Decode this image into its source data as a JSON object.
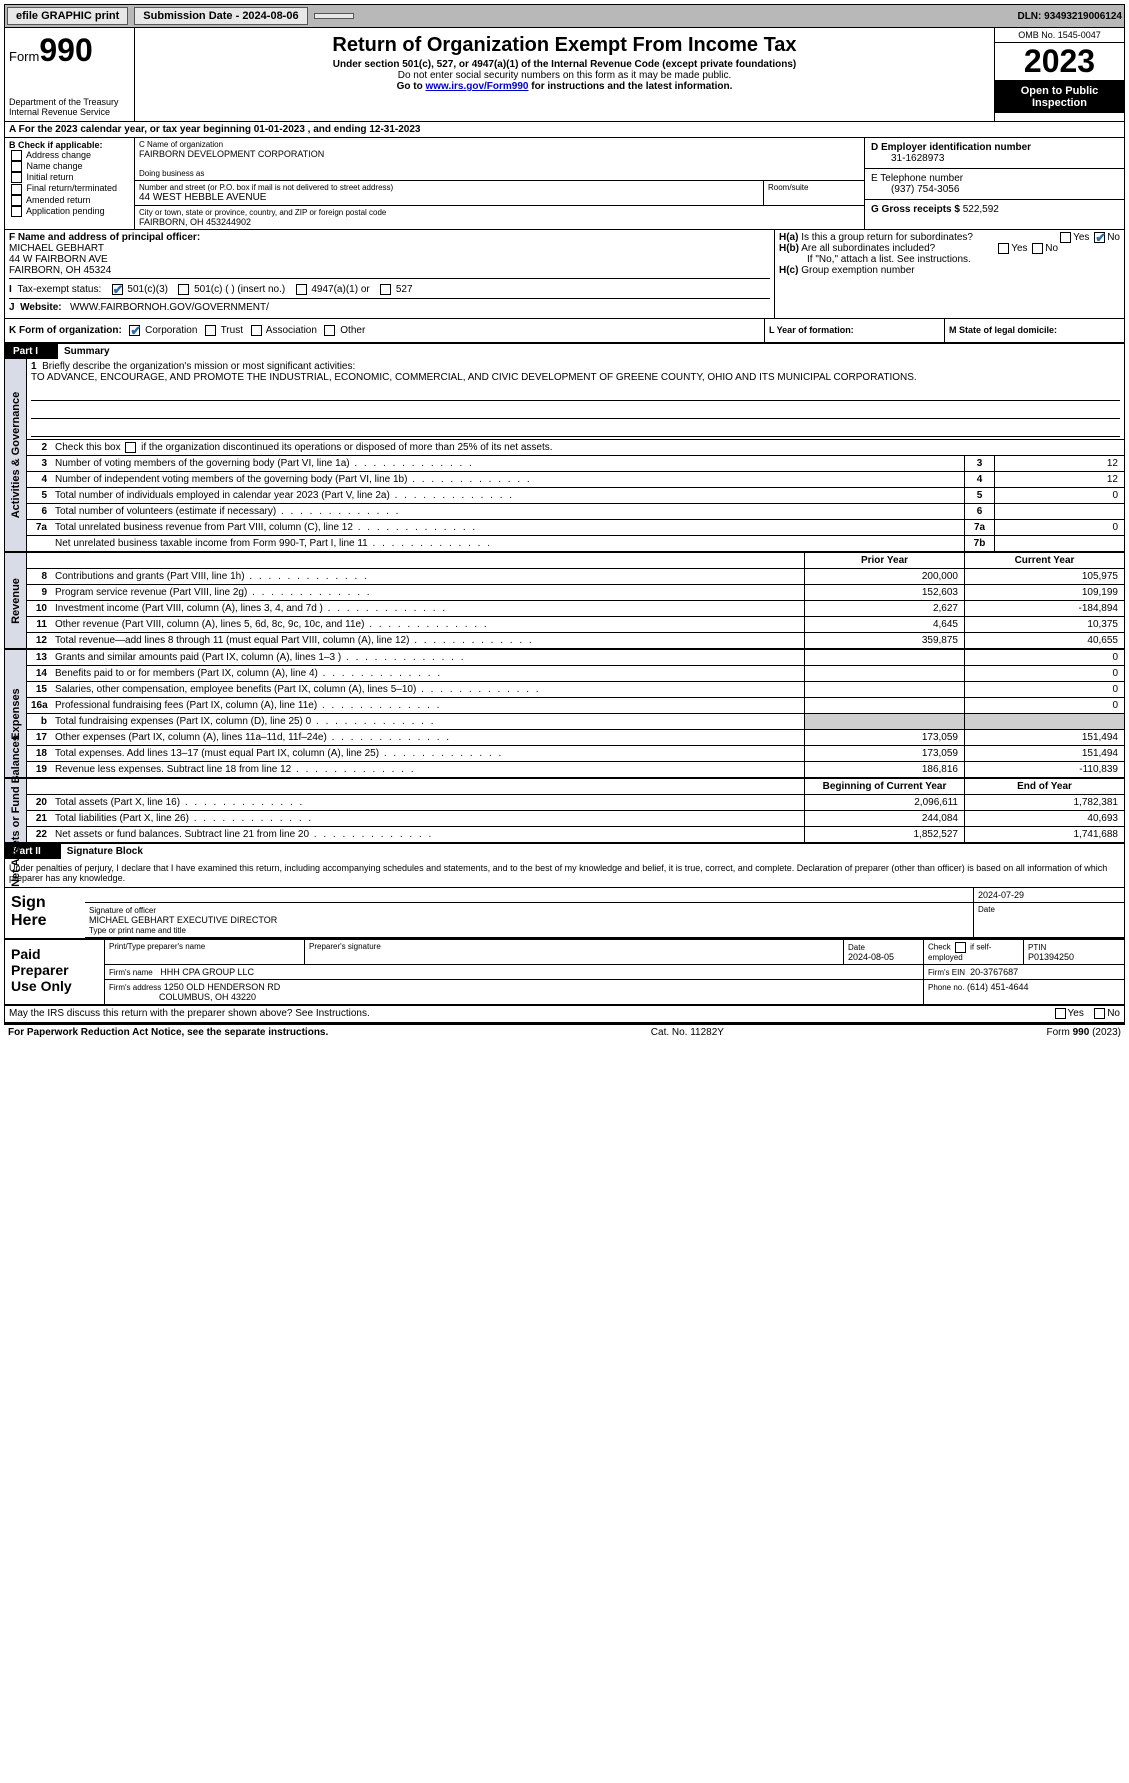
{
  "topbar": {
    "efile": "efile GRAPHIC print",
    "sub_date_label": "Submission Date - 2024-08-06",
    "dln": "DLN: 93493219006124"
  },
  "header": {
    "form_label": "Form",
    "form_num": "990",
    "dept1": "Department of the Treasury",
    "dept2": "Internal Revenue Service",
    "title": "Return of Organization Exempt From Income Tax",
    "sub1": "Under section 501(c), 527, or 4947(a)(1) of the Internal Revenue Code (except private foundations)",
    "sub2": "Do not enter social security numbers on this form as it may be made public.",
    "sub3_pre": "Go to ",
    "sub3_link": "www.irs.gov/Form990",
    "sub3_post": " for instructions and the latest information.",
    "omb": "OMB No. 1545-0047",
    "year": "2023",
    "open": "Open to Public Inspection"
  },
  "row_a": "A  For the 2023 calendar year, or tax year beginning 01-01-2023   , and ending 12-31-2023",
  "secB": {
    "b_label": "B Check if applicable:",
    "b_items": [
      "Address change",
      "Name change",
      "Initial return",
      "Final return/terminated",
      "Amended return",
      "Application pending"
    ],
    "c_name_label": "C Name of organization",
    "c_name": "FAIRBORN DEVELOPMENT CORPORATION",
    "dba_label": "Doing business as",
    "street_label": "Number and street (or P.O. box if mail is not delivered to street address)",
    "room_label": "Room/suite",
    "street": "44 WEST HEBBLE AVENUE",
    "city_label": "City or town, state or province, country, and ZIP or foreign postal code",
    "city": "FAIRBORN, OH  453244902",
    "d_label": "D Employer identification number",
    "d_val": "31-1628973",
    "e_label": "E Telephone number",
    "e_val": "(937) 754-3056",
    "g_label": "G Gross receipts $ ",
    "g_val": "522,592"
  },
  "secF": {
    "f_label": "F Name and address of principal officer:",
    "f_name": "MICHAEL GEBHART",
    "f_addr1": "44 W FAIRBORN AVE",
    "f_addr2": "FAIRBORN, OH  45324",
    "i_label": "Tax-exempt status:",
    "i_501c3": "501(c)(3)",
    "i_501c": "501(c) (  ) (insert no.)",
    "i_4947": "4947(a)(1) or",
    "i_527": "527",
    "j_label": "Website:",
    "j_val": "WWW.FAIRBORNOH.GOV/GOVERNMENT/",
    "ha_label": "H(a)  Is this a group return for subordinates?",
    "hb_label": "H(b)  Are all subordinates included?",
    "hb_note": "If \"No,\" attach a list. See instructions.",
    "hc_label": "H(c)  Group exemption number",
    "yes": "Yes",
    "no": "No"
  },
  "rowK": {
    "k_label": "K Form of organization:",
    "k_corp": "Corporation",
    "k_trust": "Trust",
    "k_assoc": "Association",
    "k_other": "Other",
    "l_label": "L Year of formation:",
    "m_label": "M State of legal domicile:"
  },
  "part1_hdr": {
    "num": "Part I",
    "txt": "Summary"
  },
  "mission": {
    "label": "1  Briefly describe the organization's mission or most significant activities:",
    "text": "TO ADVANCE, ENCOURAGE, AND PROMOTE THE INDUSTRIAL, ECONOMIC, COMMERCIAL, AND CIVIC DEVELOPMENT OF GREENE COUNTY, OHIO AND ITS MUNICIPAL CORPORATIONS."
  },
  "ag_lines": {
    "l2": "Check this box       if the organization discontinued its operations or disposed of more than 25% of its net assets.",
    "l3": "Number of voting members of the governing body (Part VI, line 1a)",
    "l4": "Number of independent voting members of the governing body (Part VI, line 1b)",
    "l5": "Total number of individuals employed in calendar year 2023 (Part V, line 2a)",
    "l6": "Total number of volunteers (estimate if necessary)",
    "l7a": "Total unrelated business revenue from Part VIII, column (C), line 12",
    "l7b": "Net unrelated business taxable income from Form 990-T, Part I, line 11",
    "v3": "12",
    "v4": "12",
    "v5": "0",
    "v6": "",
    "v7a": "0",
    "v7b": ""
  },
  "rev_hdr": {
    "prior": "Prior Year",
    "curr": "Current Year"
  },
  "rev": [
    {
      "n": "8",
      "t": "Contributions and grants (Part VIII, line 1h)",
      "p": "200,000",
      "c": "105,975"
    },
    {
      "n": "9",
      "t": "Program service revenue (Part VIII, line 2g)",
      "p": "152,603",
      "c": "109,199"
    },
    {
      "n": "10",
      "t": "Investment income (Part VIII, column (A), lines 3, 4, and 7d )",
      "p": "2,627",
      "c": "-184,894"
    },
    {
      "n": "11",
      "t": "Other revenue (Part VIII, column (A), lines 5, 6d, 8c, 9c, 10c, and 11e)",
      "p": "4,645",
      "c": "10,375"
    },
    {
      "n": "12",
      "t": "Total revenue—add lines 8 through 11 (must equal Part VIII, column (A), line 12)",
      "p": "359,875",
      "c": "40,655"
    }
  ],
  "exp": [
    {
      "n": "13",
      "t": "Grants and similar amounts paid (Part IX, column (A), lines 1–3 )",
      "p": "",
      "c": "0"
    },
    {
      "n": "14",
      "t": "Benefits paid to or for members (Part IX, column (A), line 4)",
      "p": "",
      "c": "0"
    },
    {
      "n": "15",
      "t": "Salaries, other compensation, employee benefits (Part IX, column (A), lines 5–10)",
      "p": "",
      "c": "0"
    },
    {
      "n": "16a",
      "t": "Professional fundraising fees (Part IX, column (A), line 11e)",
      "p": "",
      "c": "0"
    },
    {
      "n": "b",
      "t": "Total fundraising expenses (Part IX, column (D), line 25) 0",
      "grey": true
    },
    {
      "n": "17",
      "t": "Other expenses (Part IX, column (A), lines 11a–11d, 11f–24e)",
      "p": "173,059",
      "c": "151,494"
    },
    {
      "n": "18",
      "t": "Total expenses. Add lines 13–17 (must equal Part IX, column (A), line 25)",
      "p": "173,059",
      "c": "151,494"
    },
    {
      "n": "19",
      "t": "Revenue less expenses. Subtract line 18 from line 12",
      "p": "186,816",
      "c": "-110,839"
    }
  ],
  "na_hdr": {
    "beg": "Beginning of Current Year",
    "end": "End of Year"
  },
  "na": [
    {
      "n": "20",
      "t": "Total assets (Part X, line 16)",
      "p": "2,096,611",
      "c": "1,782,381"
    },
    {
      "n": "21",
      "t": "Total liabilities (Part X, line 26)",
      "p": "244,084",
      "c": "40,693"
    },
    {
      "n": "22",
      "t": "Net assets or fund balances. Subtract line 21 from line 20",
      "p": "1,852,527",
      "c": "1,741,688"
    }
  ],
  "vlabels": {
    "ag": "Activities & Governance",
    "rev": "Revenue",
    "exp": "Expenses",
    "na": "Net Assets or Fund Balances"
  },
  "part2_hdr": {
    "num": "Part II",
    "txt": "Signature Block"
  },
  "sig": {
    "intro": "Under penalties of perjury, I declare that I have examined this return, including accompanying schedules and statements, and to the best of my knowledge and belief, it is true, correct, and complete. Declaration of preparer (other than officer) is based on all information of which preparer has any knowledge.",
    "sign_here": "Sign Here",
    "date": "2024-07-29",
    "sig_label": "Signature of officer",
    "date_label": "Date",
    "officer": "MICHAEL GEBHART  EXECUTIVE DIRECTOR",
    "type_label": "Type or print name and title"
  },
  "paid": {
    "title": "Paid Preparer Use Only",
    "print_label": "Print/Type preparer's name",
    "prep_sig": "Preparer's signature",
    "date_label": "Date",
    "date": "2024-08-05",
    "check_label": "Check         if self-employed",
    "ptin_label": "PTIN",
    "ptin": "P01394250",
    "firm_name_label": "Firm's name",
    "firm_name": "HHH CPA GROUP LLC",
    "firm_ein_label": "Firm's EIN",
    "firm_ein": "20-3767687",
    "firm_addr_label": "Firm's address",
    "firm_addr1": "1250 OLD HENDERSON RD",
    "firm_addr2": "COLUMBUS, OH  43220",
    "phone_label": "Phone no.",
    "phone": "(614) 451-4644"
  },
  "discuss": {
    "q": "May the IRS discuss this return with the preparer shown above? See Instructions.",
    "yes": "Yes",
    "no": "No"
  },
  "footer": {
    "left": "For Paperwork Reduction Act Notice, see the separate instructions.",
    "mid": "Cat. No. 11282Y",
    "right": "Form 990 (2023)"
  }
}
